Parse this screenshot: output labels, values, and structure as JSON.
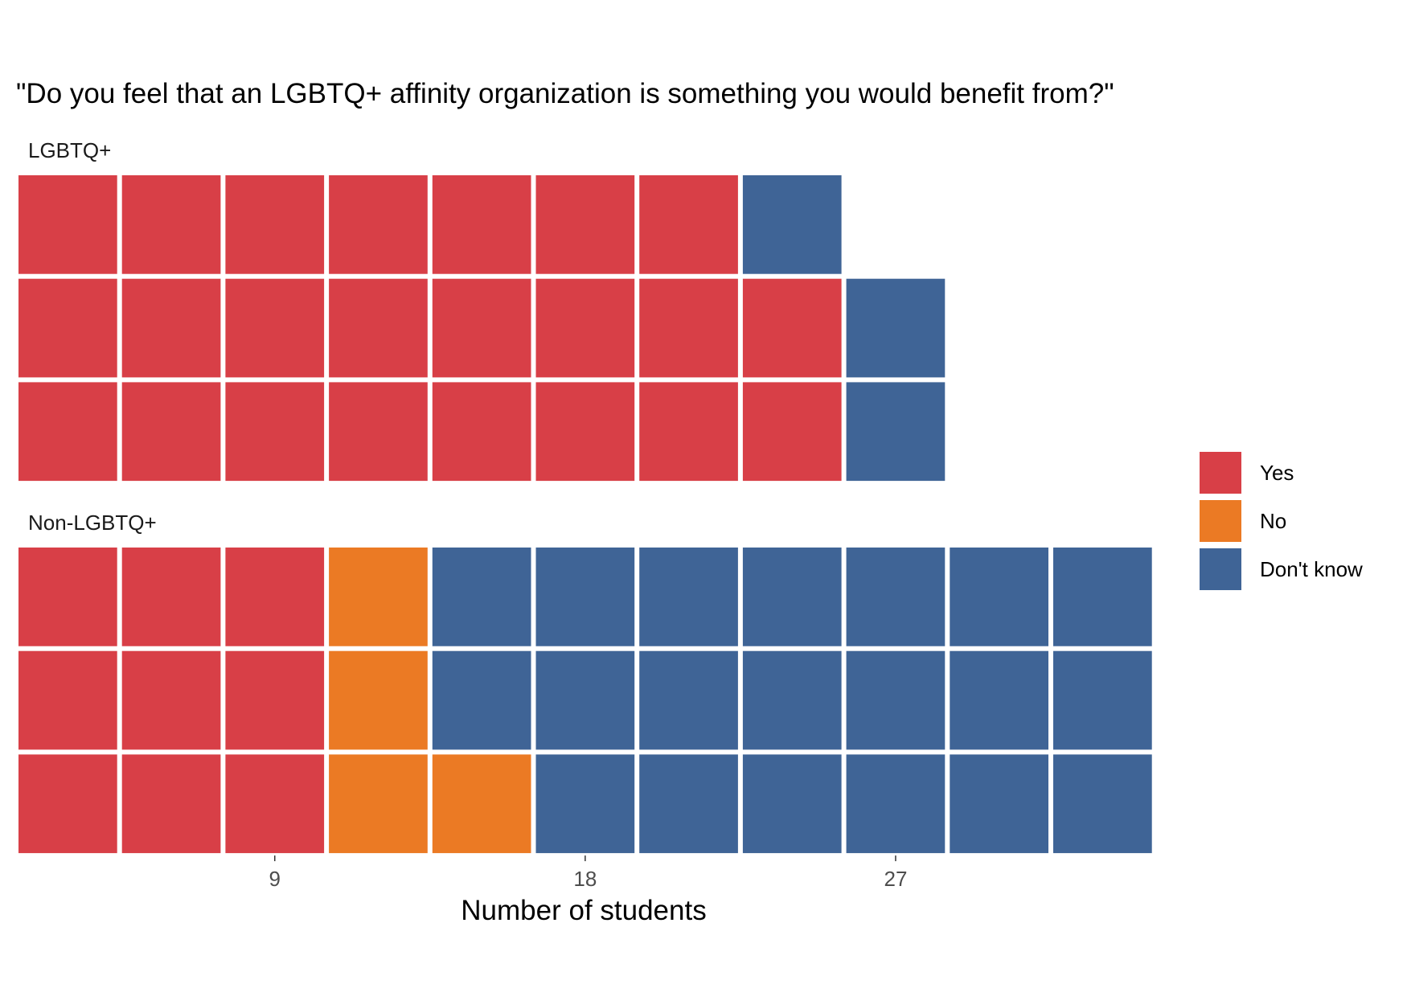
{
  "chart_data": {
    "type": "waffle",
    "title": "\"Do you feel that an LGBTQ+ affinity organization is something you would benefit from?\"",
    "xlabel": "Number of students",
    "x_ticks": [
      9,
      18,
      27
    ],
    "rows_per_column": 3,
    "categories": [
      "Yes",
      "No",
      "Don't know"
    ],
    "colors": {
      "Yes": "#d83f47",
      "No": "#eb7a24",
      "Don't know": "#3f6496"
    },
    "legend_position": "right",
    "grid": false,
    "panels": [
      {
        "name": "LGBTQ+",
        "counts": {
          "Yes": 23,
          "No": 0,
          "Don't know": 3
        }
      },
      {
        "name": "Non-LGBTQ+",
        "counts": {
          "Yes": 9,
          "No": 4,
          "Don't know": 20
        }
      }
    ]
  }
}
